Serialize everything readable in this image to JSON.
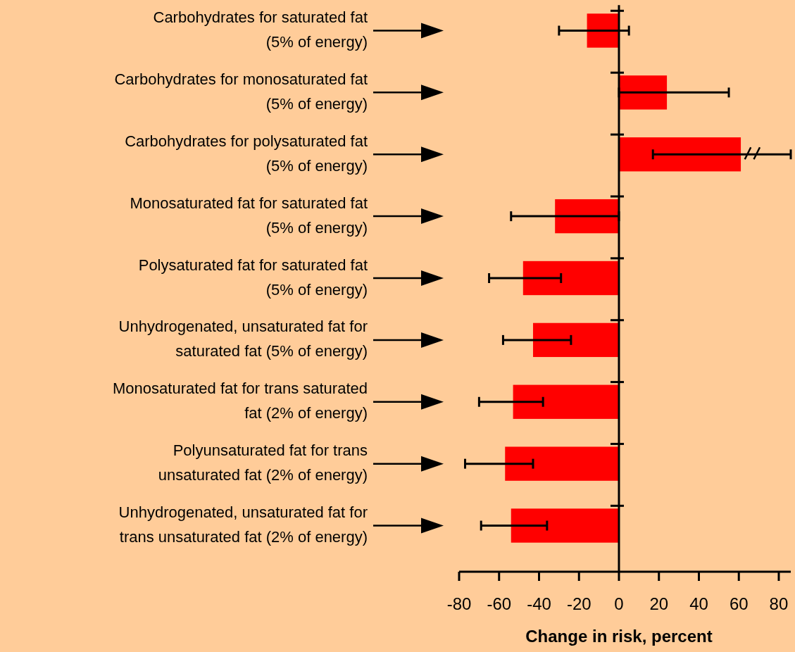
{
  "chart_data": {
    "type": "bar",
    "orientation": "horizontal",
    "xlabel": "Change in risk, percent",
    "categories": [
      "Carbohydrates for saturated fat\n(5% of energy)",
      "Carbohydrates for monosaturated fat\n(5% of energy)",
      "Carbohydrates for polysaturated fat\n(5% of energy)",
      "Monosaturated fat for saturated fat\n(5% of energy)",
      "Polysaturated fat for saturated fat\n(5% of energy)",
      "Unhydrogenated, unsaturated fat for\nsaturated fat (5% of energy)",
      "Monosaturated fat for trans saturated\nfat (2% of energy)",
      "Polyunsaturated fat for trans\nunsaturated fat (2% of energy)",
      "Unhydrogenated, unsaturated fat for\ntrans unsaturated fat (2% of energy)"
    ],
    "values": [
      -16,
      24,
      61,
      -32,
      -48,
      -43,
      -53,
      -57,
      -54
    ],
    "errors": [
      [
        -30,
        5
      ],
      [
        0,
        55
      ],
      [
        17,
        86
      ],
      [
        -54,
        0
      ],
      [
        -65,
        -29
      ],
      [
        -58,
        -24
      ],
      [
        -70,
        -38
      ],
      [
        -77,
        -43
      ],
      [
        -69,
        -36
      ]
    ],
    "color": "#ff0000",
    "xlim": [
      -80,
      86
    ],
    "xticks": [
      -80,
      -60,
      -40,
      -20,
      0,
      20,
      40,
      60,
      80
    ]
  }
}
